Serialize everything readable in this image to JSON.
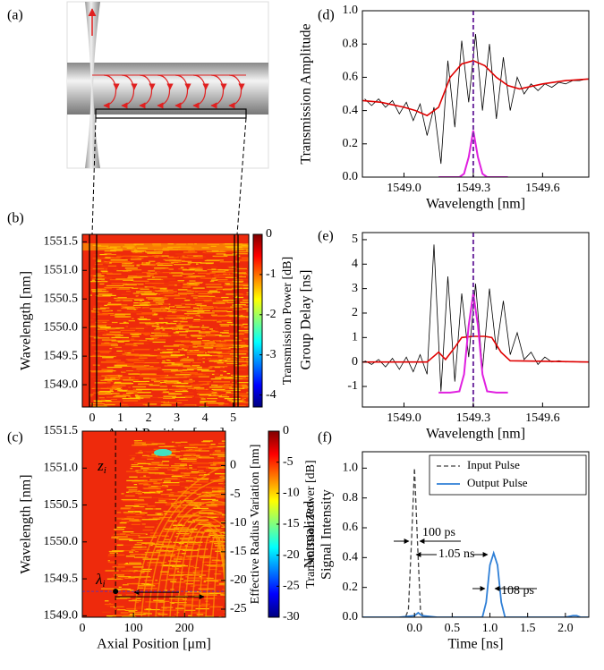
{
  "chart_data": [
    {
      "type": "diagram",
      "panel": "(a)"
    },
    {
      "type": "heatmap",
      "panel": "(b)",
      "xlabel": "Axial Position [mm]",
      "ylabel": "Wavelength [nm]",
      "xlim": [
        -0.35,
        5.55
      ],
      "xticks": [
        0,
        1,
        2,
        3,
        4,
        5
      ],
      "ylim": [
        1548.61,
        1551.63
      ],
      "yticks": [
        {
          "value": 1549.0,
          "label": "1549.0"
        },
        1549.5,
        {
          "value": 1550.0,
          "label": "1550.0"
        },
        1550.5,
        {
          "value": 1551.0,
          "label": "1551.0"
        },
        1551.5
      ],
      "colormap": "jet",
      "colorbar": {
        "label": "Transmission Power [dB]",
        "lim": [
          -4.3,
          0
        ],
        "ticks": [
          0,
          -1,
          -2,
          -3,
          -4
        ]
      }
    },
    {
      "type": "heatmap",
      "panel": "(c)",
      "xlabel": "Axial Position [μm]",
      "ylabel": "Wavelength [nm]",
      "xlim": [
        0,
        280
      ],
      "xticks": [
        0,
        100,
        200
      ],
      "ylim": [
        1548.98,
        1551.5
      ],
      "yticks": [
        {
          "value": 1549.0,
          "label": "1549.0"
        },
        1549.5,
        {
          "value": 1550.0,
          "label": "1550.0"
        },
        1550.5,
        {
          "value": 1551.0,
          "label": "1551.0"
        },
        1551.5
      ],
      "y2label": "Effective Radius Variation [nm]",
      "y2lim": [
        -26.4,
        6
      ],
      "y2ticks": [
        0,
        -5,
        -10,
        -15,
        -20,
        -25
      ],
      "colormap": "jet",
      "colorbar": {
        "label": "Transmission Power [dB]",
        "lim": [
          -30,
          0
        ],
        "ticks": [
          0,
          -5,
          -10,
          -15,
          -20,
          -25,
          -30
        ]
      },
      "marker_x": 65,
      "marker_y": 1549.33,
      "annotations": [
        {
          "text": "z",
          "sub": "i"
        },
        {
          "text": "λ",
          "sub": "i"
        }
      ]
    },
    {
      "type": "line",
      "panel": "(d)",
      "xlabel": "Wavelength [nm]",
      "ylabel": "Transmission Amplitude",
      "xlim": [
        1548.82,
        1549.8
      ],
      "xticks": [
        {
          "value": 1549.0,
          "label": "1549.0"
        },
        {
          "value": 1549.3,
          "label": "1549.3"
        },
        {
          "value": 1549.6,
          "label": "1549.6"
        }
      ],
      "ylim": [
        0,
        1
      ],
      "yticks": [
        {
          "value": 0,
          "label": "0.0"
        },
        0.2,
        0.4,
        0.6,
        0.8,
        {
          "value": 1,
          "label": "1.0"
        }
      ],
      "marker_x": 1549.3,
      "marker_color": "#7030a0",
      "series": [
        {
          "color": "#000000",
          "width": 0.8,
          "x": [
            1548.83,
            1548.86,
            1548.89,
            1548.92,
            1548.95,
            1548.98,
            1549.01,
            1549.04,
            1549.07,
            1549.1,
            1549.13,
            1549.16,
            1549.19,
            1549.22,
            1549.25,
            1549.28,
            1549.31,
            1549.34,
            1549.37,
            1549.4,
            1549.43,
            1549.46,
            1549.49,
            1549.52,
            1549.55,
            1549.58,
            1549.61,
            1549.64,
            1549.67,
            1549.7,
            1549.73,
            1549.76,
            1549.79
          ],
          "values": [
            0.47,
            0.43,
            0.47,
            0.42,
            0.46,
            0.38,
            0.45,
            0.34,
            0.44,
            0.25,
            0.42,
            0.08,
            0.7,
            0.3,
            0.82,
            0.45,
            0.86,
            0.4,
            0.8,
            0.35,
            0.72,
            0.4,
            0.6,
            0.5,
            0.56,
            0.52,
            0.56,
            0.54,
            0.57,
            0.56,
            0.58,
            0.58,
            0.59
          ]
        },
        {
          "color": "#e00000",
          "width": 1.6,
          "x": [
            1548.82,
            1548.9,
            1549.0,
            1549.05,
            1549.1,
            1549.15,
            1549.2,
            1549.25,
            1549.3,
            1549.35,
            1549.4,
            1549.45,
            1549.5,
            1549.6,
            1549.7,
            1549.8
          ],
          "values": [
            0.46,
            0.45,
            0.42,
            0.4,
            0.37,
            0.42,
            0.6,
            0.68,
            0.7,
            0.67,
            0.6,
            0.55,
            0.53,
            0.56,
            0.58,
            0.59
          ]
        },
        {
          "color": "#e020e0",
          "width": 2,
          "x": [
            1549.15,
            1549.2,
            1549.24,
            1549.26,
            1549.28,
            1549.3,
            1549.32,
            1549.34,
            1549.36,
            1549.4,
            1549.45
          ],
          "values": [
            0,
            0,
            0,
            0.02,
            0.12,
            0.28,
            0.12,
            0.02,
            0,
            0,
            0
          ]
        }
      ]
    },
    {
      "type": "line",
      "panel": "(e)",
      "xlabel": "Wavelength [nm]",
      "ylabel": "Group Delay [ns]",
      "xlim": [
        1548.82,
        1549.8
      ],
      "xticks": [
        {
          "value": 1549.0,
          "label": "1549.0"
        },
        {
          "value": 1549.3,
          "label": "1549.3"
        },
        {
          "value": 1549.6,
          "label": "1549.6"
        }
      ],
      "ylim": [
        -1.84,
        5.29
      ],
      "yticks": [
        -1,
        0,
        1,
        2,
        3,
        4,
        5
      ],
      "marker_x": 1549.3,
      "marker_color": "#7030a0",
      "series": [
        {
          "color": "#000000",
          "width": 0.8,
          "x": [
            1548.83,
            1548.86,
            1548.89,
            1548.92,
            1548.95,
            1548.98,
            1549.01,
            1549.04,
            1549.07,
            1549.1,
            1549.13,
            1549.16,
            1549.19,
            1549.22,
            1549.25,
            1549.28,
            1549.31,
            1549.34,
            1549.37,
            1549.4,
            1549.43,
            1549.46,
            1549.49,
            1549.52,
            1549.55,
            1549.58,
            1549.61,
            1549.64,
            1549.67,
            1549.7,
            1549.73,
            1549.76,
            1549.79
          ],
          "values": [
            0.05,
            -0.1,
            0.1,
            -0.2,
            0.15,
            -0.3,
            0.2,
            -0.4,
            0.3,
            -0.5,
            4.8,
            -1.2,
            3.5,
            -0.8,
            2.8,
            0.2,
            3.2,
            -0.3,
            3.0,
            0.5,
            2.5,
            0.3,
            1.2,
            0.1,
            0.4,
            -0.1,
            0.2,
            0.0,
            0.05,
            0.0,
            0.02,
            0.0,
            0.0
          ]
        },
        {
          "color": "#e00000",
          "width": 1.6,
          "x": [
            1548.82,
            1549.1,
            1549.15,
            1549.18,
            1549.22,
            1549.25,
            1549.3,
            1549.35,
            1549.38,
            1549.42,
            1549.46,
            1549.8
          ],
          "values": [
            0,
            0,
            0.4,
            0.1,
            0.6,
            1.0,
            1.05,
            1.05,
            1.0,
            0.4,
            0.05,
            0
          ]
        },
        {
          "color": "#e020e0",
          "width": 2,
          "x": [
            1549.15,
            1549.2,
            1549.24,
            1549.26,
            1549.28,
            1549.3,
            1549.32,
            1549.34,
            1549.36,
            1549.4,
            1549.45
          ],
          "values": [
            -1.25,
            -1.25,
            -1.2,
            -0.5,
            1.5,
            2.8,
            1.5,
            -0.5,
            -1.2,
            -1.25,
            -1.25
          ]
        }
      ]
    },
    {
      "type": "line",
      "panel": "(f)",
      "xlabel": "Time [ns]",
      "ylabel": [
        "Normalized",
        "Signal Intensity"
      ],
      "xlim": [
        -0.69,
        2.31
      ],
      "xticks": [
        {
          "value": 0,
          "label": "0.0"
        },
        0.5,
        {
          "value": 1,
          "label": "1.0"
        },
        1.5,
        {
          "value": 2,
          "label": "2.0"
        }
      ],
      "ylim": [
        0,
        1.11
      ],
      "yticks": [
        {
          "value": 0,
          "label": "0.0"
        },
        0.2,
        0.4,
        0.6,
        0.8,
        {
          "value": 1,
          "label": "1.0"
        }
      ],
      "legend": "upper right",
      "series": [
        {
          "name": "Input Pulse",
          "color": "#404040",
          "width": 1.3,
          "linestyle": "dashed",
          "x": [
            -0.2,
            -0.12,
            -0.08,
            -0.04,
            0,
            0.04,
            0.08,
            0.12,
            0.2
          ],
          "values": [
            0,
            0,
            0.05,
            0.5,
            1.0,
            0.5,
            0.05,
            0,
            0
          ]
        },
        {
          "name": "Output Pulse",
          "color": "#2f7fd6",
          "width": 1.8,
          "x": [
            -0.69,
            -0.2,
            0,
            0.05,
            0.1,
            0.3,
            0.9,
            0.95,
            1.0,
            1.05,
            1.1,
            1.15,
            1.2,
            2.0,
            2.1,
            2.15,
            2.2,
            2.31
          ],
          "values": [
            0,
            0,
            0.01,
            0.03,
            0.01,
            0,
            0,
            0.1,
            0.35,
            0.43,
            0.35,
            0.1,
            0,
            0,
            0.01,
            0.01,
            0,
            0
          ]
        }
      ],
      "annotations": [
        "100 ps",
        "1.05 ns",
        "108 ps"
      ]
    }
  ]
}
